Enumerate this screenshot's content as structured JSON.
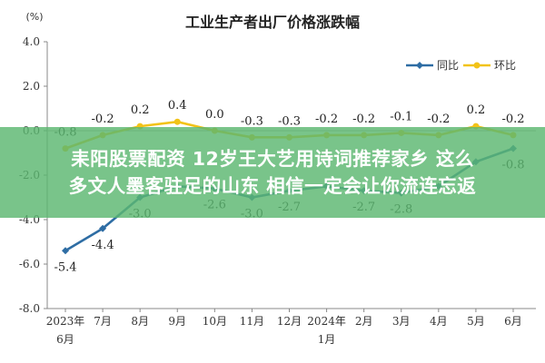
{
  "chart_data": {
    "type": "line",
    "title": "工业生产者出厂价格涨跌幅",
    "ylabel": "(%)",
    "ylim": [
      -8.0,
      4.0
    ],
    "yticks": [
      "4.0",
      "2.0",
      "0.0",
      "-2.0",
      "-4.0",
      "-6.0",
      "-8.0"
    ],
    "categories": [
      "2023年\n6月",
      "7月",
      "8月",
      "9月",
      "10月",
      "11月",
      "12月",
      "2024年\n1月",
      "2月",
      "3月",
      "4月",
      "5月",
      "6月"
    ],
    "legend_position": "top-right",
    "grid": false,
    "series": [
      {
        "name": "同比",
        "color": "#2e6da4",
        "values": [
          -5.4,
          -4.4,
          -3.0,
          -2.5,
          -2.6,
          -3.0,
          -2.7,
          -2.5,
          -2.7,
          -2.8,
          -2.5,
          -1.4,
          -0.8
        ],
        "labels": [
          "-5.4",
          "-4.4",
          "-3.0",
          "",
          "-2.6",
          "-3.0",
          "-2.7",
          "",
          "-2.7",
          "-2.8",
          "",
          "",
          "-0.8"
        ]
      },
      {
        "name": "环比",
        "color": "#f2c318",
        "values": [
          -0.8,
          -0.2,
          0.2,
          0.4,
          0.0,
          -0.3,
          -0.3,
          -0.2,
          -0.2,
          -0.1,
          -0.2,
          0.2,
          -0.2
        ],
        "labels": [
          "-0.8",
          "-0.2",
          "0.2",
          "0.4",
          "0.0",
          "-0.3",
          "-0.3",
          "-0.2",
          "-0.2",
          "-0.1",
          "-0.2",
          "0.2",
          "-0.2"
        ]
      }
    ]
  },
  "overlay": {
    "line1": "耒阳股票配资 12岁王大艺用诗词推荐家乡 这么",
    "line2": "多文人墨客驻足的山东 相信一定会让你流连忘返"
  }
}
